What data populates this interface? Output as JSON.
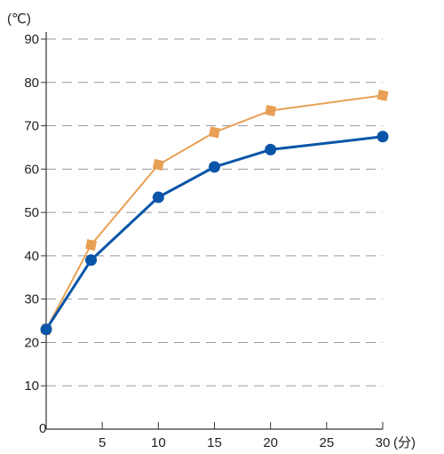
{
  "chart_data": {
    "type": "line",
    "ylabel": "(℃)",
    "xunit": "(分)",
    "x_origin_label": "0",
    "xlim": [
      0,
      30
    ],
    "ylim": [
      0,
      90
    ],
    "x_ticks": [
      5,
      10,
      15,
      20,
      25,
      30
    ],
    "x_tick_labels": [
      "5",
      "10",
      "15",
      "20",
      "25",
      "30"
    ],
    "y_ticks": [
      10,
      20,
      30,
      40,
      50,
      60,
      70,
      80,
      90
    ],
    "y_tick_labels": [
      "10",
      "20",
      "30",
      "40",
      "50",
      "60",
      "70",
      "80",
      "90"
    ],
    "grid": "horizontal dashed",
    "series": [
      {
        "color": "#e8a055",
        "marker": "square",
        "x": [
          0,
          4,
          10,
          15,
          20,
          30
        ],
        "y": [
          23,
          42.5,
          61,
          68.5,
          73.5,
          77
        ]
      },
      {
        "color": "#0a55a8",
        "marker": "circle",
        "x": [
          0,
          4,
          10,
          15,
          20,
          30
        ],
        "y": [
          23,
          39,
          53.5,
          60.5,
          64.5,
          67.5
        ]
      }
    ]
  }
}
